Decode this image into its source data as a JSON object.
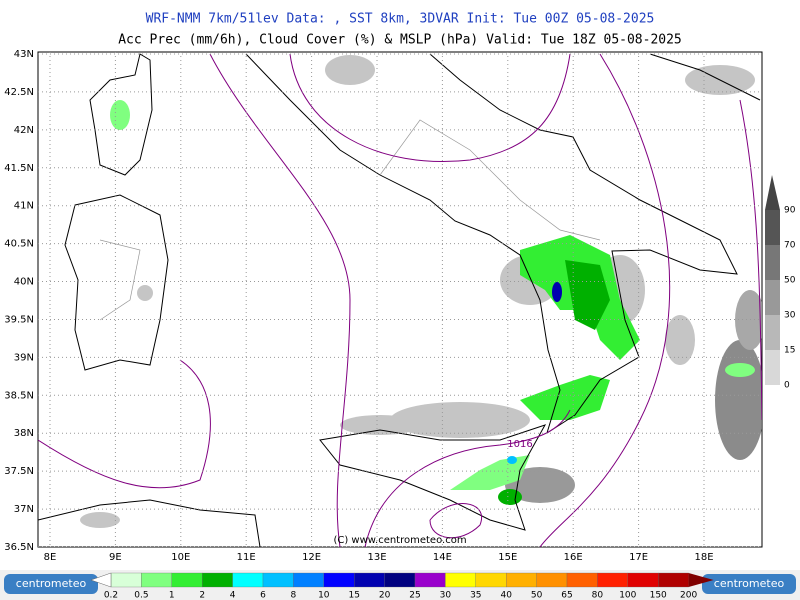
{
  "header": {
    "line1": "WRF-NMM 7km/51lev  Data: , SST 8km, 3DVAR  Init: Tue 00Z 05-08-2025",
    "line2": "Acc Prec (mm/6h), Cloud Cover (%) & MSLP (hPa)  Valid: Tue 18Z 05-08-2025"
  },
  "map": {
    "lat_labels": [
      "43N",
      "42.5N",
      "42N",
      "41.5N",
      "41N",
      "40.5N",
      "40N",
      "39.5N",
      "39N",
      "38.5N",
      "38N",
      "37.5N",
      "37N",
      "36.5N"
    ],
    "lon_labels": [
      "8E",
      "9E",
      "10E",
      "11E",
      "12E",
      "13E",
      "14E",
      "15E",
      "16E",
      "17E",
      "18E"
    ],
    "isobar_label": "1016",
    "copyright": "(C) www.centrometeo.com"
  },
  "cloud_scale": {
    "labels": [
      "90",
      "70",
      "50",
      "30",
      "15",
      "0"
    ],
    "colors": [
      "#555555",
      "#777777",
      "#999999",
      "#b8b8b8",
      "#d8d8d8"
    ]
  },
  "precip_scale": {
    "labels": [
      "0.2",
      "0.5",
      "1",
      "2",
      "4",
      "6",
      "8",
      "10",
      "15",
      "20",
      "25",
      "30",
      "35",
      "40",
      "50",
      "65",
      "80",
      "100",
      "150",
      "200"
    ],
    "colors": [
      "#d8ffd8",
      "#80ff80",
      "#33ee33",
      "#00b000",
      "#00ffff",
      "#00c0ff",
      "#0080ff",
      "#0000ff",
      "#0000b0",
      "#000080",
      "#9900cc",
      "#ffff00",
      "#ffd700",
      "#ffb000",
      "#ff9000",
      "#ff6000",
      "#ff2000",
      "#e00000",
      "#b00000"
    ],
    "logo_left": "centrometeo",
    "logo_right": "centrometeo"
  }
}
